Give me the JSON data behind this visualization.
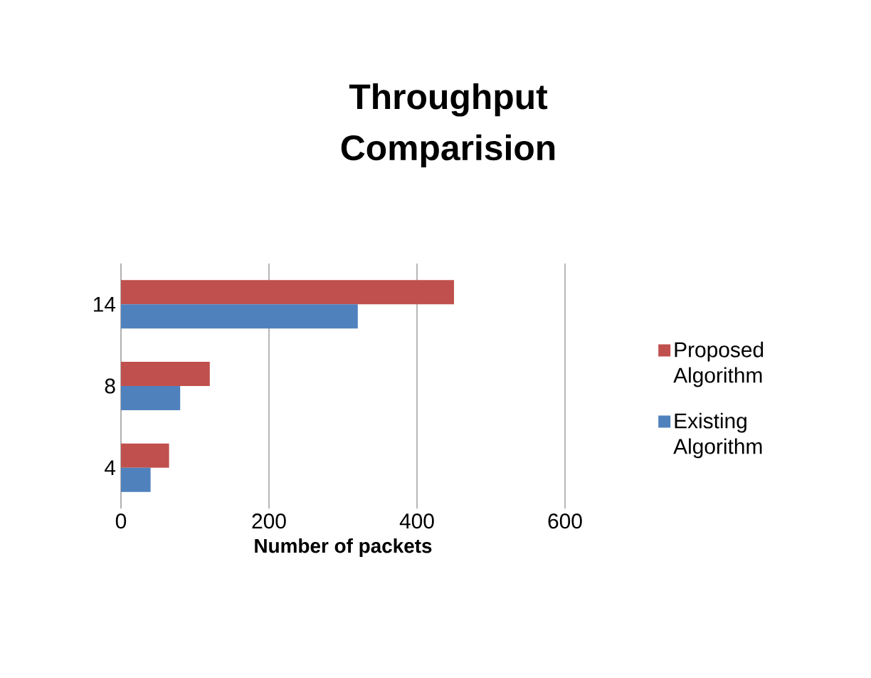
{
  "chart_data": {
    "type": "bar",
    "orientation": "horizontal",
    "title": "Throughput Comparision",
    "xlabel": "Number of packets",
    "categories": [
      "14",
      "8",
      "4"
    ],
    "series": [
      {
        "name": "Proposed Algorithm",
        "color": "#c0504d",
        "values": [
          450,
          120,
          65
        ]
      },
      {
        "name": "Existing Algorithm",
        "color": "#4f81bd",
        "values": [
          320,
          80,
          40
        ]
      }
    ],
    "xlim": [
      0,
      600
    ],
    "xticks": [
      0,
      200,
      400,
      600
    ],
    "grid": "x",
    "legend": "right"
  }
}
